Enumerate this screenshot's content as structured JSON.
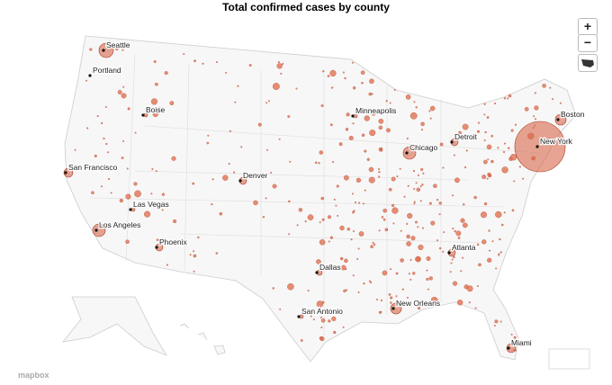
{
  "header": {
    "title": "Total confirmed cases by county"
  },
  "controls": {
    "zoom_in": "+",
    "zoom_out": "−"
  },
  "cities": [
    "Seattle",
    "Portland",
    "Boise",
    "San Francisco",
    "Las Vegas",
    "Los Angeles",
    "Phoenix",
    "Denver",
    "Minneapolis",
    "Chicago",
    "Detroit",
    "New York",
    "Boston",
    "Atlanta",
    "Dallas",
    "San Antonio",
    "New Orleans",
    "Miami"
  ],
  "attribution": "mapbox"
}
